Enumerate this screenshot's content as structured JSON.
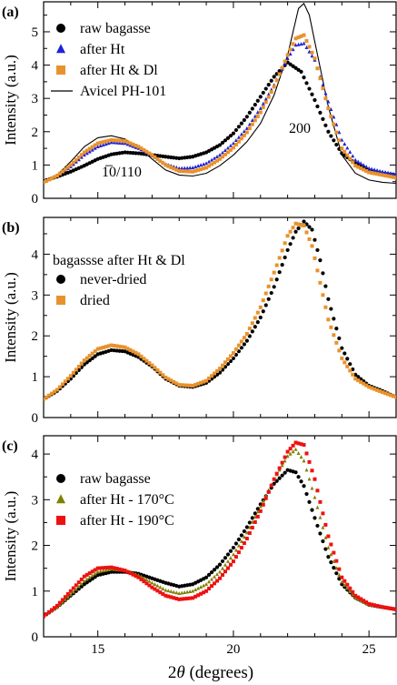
{
  "figure": {
    "xlabel_prefix": "2",
    "xlabel_theta": "θ",
    "xlabel_suffix": " (degrees)"
  },
  "chart_data": [
    {
      "type": "scatter",
      "panel_label": "(a)",
      "xlim": [
        13,
        26
      ],
      "ylim": [
        0,
        5.9
      ],
      "xticks": [
        15,
        20,
        25
      ],
      "yticks": [
        0,
        1,
        2,
        3,
        4,
        5
      ],
      "ylabel": "Intensity (a.u.)",
      "xlabel": "2θ (degrees)",
      "annotations": [
        {
          "text": "200",
          "x": 22.2,
          "y": 2.35
        },
        {
          "text": "1̅0/110",
          "x": 16.0,
          "y": 0.9
        }
      ],
      "series": [
        {
          "name": "raw bagasse",
          "marker": "circle",
          "color": "#000000",
          "x": [
            13,
            13.5,
            14,
            14.5,
            15,
            15.5,
            16,
            16.5,
            17,
            17.5,
            18,
            18.5,
            19,
            19.5,
            20,
            20.5,
            21,
            21.5,
            22,
            22.5,
            23,
            23.5,
            24,
            24.5,
            25,
            25.5,
            26
          ],
          "y": [
            0.52,
            0.65,
            0.8,
            0.98,
            1.18,
            1.32,
            1.38,
            1.35,
            1.3,
            1.25,
            1.2,
            1.25,
            1.38,
            1.6,
            1.95,
            2.45,
            3.05,
            3.65,
            4.08,
            3.8,
            2.95,
            2.0,
            1.35,
            1.05,
            0.85,
            0.75,
            0.7
          ]
        },
        {
          "name": "after Ht",
          "marker": "triangle",
          "color": "#1f22d6",
          "x": [
            13,
            13.5,
            14,
            14.5,
            15,
            15.5,
            16,
            16.5,
            17,
            17.5,
            18,
            18.5,
            19,
            19.5,
            20,
            20.5,
            21,
            21.5,
            22,
            22.3,
            22.6,
            23,
            23.5,
            24,
            24.5,
            25,
            25.5,
            26
          ],
          "y": [
            0.5,
            0.68,
            0.95,
            1.3,
            1.55,
            1.68,
            1.65,
            1.5,
            1.28,
            1.02,
            0.9,
            0.92,
            1.05,
            1.3,
            1.65,
            2.1,
            2.7,
            3.4,
            4.2,
            4.6,
            4.65,
            4.15,
            2.9,
            1.75,
            1.15,
            0.9,
            0.8,
            0.72
          ]
        },
        {
          "name": "after Ht & Dl",
          "marker": "square",
          "color": "#e8922c",
          "x": [
            13,
            13.5,
            14,
            14.5,
            15,
            15.5,
            16,
            16.5,
            17,
            17.5,
            18,
            18.5,
            19,
            19.5,
            20,
            20.5,
            21,
            21.5,
            22,
            22.3,
            22.6,
            23,
            23.5,
            24,
            24.5,
            25,
            25.5,
            26
          ],
          "y": [
            0.48,
            0.68,
            1.0,
            1.38,
            1.65,
            1.75,
            1.72,
            1.55,
            1.3,
            1.0,
            0.82,
            0.8,
            0.92,
            1.18,
            1.52,
            1.98,
            2.58,
            3.35,
            4.3,
            4.8,
            4.9,
            4.2,
            2.7,
            1.5,
            0.98,
            0.78,
            0.7,
            0.62
          ]
        }
      ],
      "lines": [
        {
          "name": "Avicel PH-101",
          "color": "#000000",
          "x": [
            13,
            13.5,
            14,
            14.5,
            15,
            15.5,
            16,
            16.5,
            17,
            17.5,
            18,
            18.5,
            19,
            19.5,
            20,
            20.5,
            21,
            21.5,
            22,
            22.2,
            22.4,
            22.6,
            22.8,
            23,
            23.5,
            24,
            24.5,
            25,
            25.5,
            26
          ],
          "y": [
            0.45,
            0.7,
            1.1,
            1.55,
            1.82,
            1.88,
            1.78,
            1.52,
            1.18,
            0.85,
            0.7,
            0.67,
            0.75,
            0.98,
            1.3,
            1.7,
            2.25,
            3.1,
            4.3,
            5.0,
            5.7,
            5.85,
            5.5,
            4.7,
            2.75,
            1.3,
            0.75,
            0.55,
            0.48,
            0.45
          ]
        }
      ]
    },
    {
      "type": "scatter",
      "panel_label": "(b)",
      "xlim": [
        13,
        26
      ],
      "ylim": [
        0,
        4.9
      ],
      "xticks": [
        15,
        20,
        25
      ],
      "yticks": [
        0,
        1,
        2,
        3,
        4
      ],
      "ylabel": "Intensity (a.u.)",
      "xlabel": "2θ (degrees)",
      "legend_title": "bagassse after Ht & Dl",
      "series": [
        {
          "name": "never-dried",
          "marker": "circle",
          "color": "#000000",
          "x": [
            13,
            13.5,
            14,
            14.5,
            15,
            15.5,
            16,
            16.5,
            17,
            17.5,
            18,
            18.5,
            19,
            19.5,
            20,
            20.5,
            21,
            21.5,
            22,
            22.3,
            22.6,
            22.9,
            23.2,
            23.5,
            24,
            24.5,
            25,
            25.5,
            26
          ],
          "y": [
            0.45,
            0.65,
            0.95,
            1.3,
            1.55,
            1.65,
            1.62,
            1.48,
            1.25,
            0.95,
            0.78,
            0.75,
            0.85,
            1.1,
            1.45,
            1.88,
            2.45,
            3.2,
            4.1,
            4.55,
            4.8,
            4.6,
            3.85,
            2.9,
            1.7,
            1.05,
            0.78,
            0.65,
            0.5
          ]
        },
        {
          "name": "dried",
          "marker": "square",
          "color": "#e8922c",
          "x": [
            13,
            13.5,
            14,
            14.5,
            15,
            15.5,
            16,
            16.5,
            17,
            17.5,
            18,
            18.5,
            19,
            19.5,
            20,
            20.5,
            21,
            21.5,
            22,
            22.3,
            22.6,
            22.9,
            23.2,
            23.5,
            24,
            24.5,
            25,
            25.5,
            26
          ],
          "y": [
            0.45,
            0.68,
            1.02,
            1.4,
            1.68,
            1.77,
            1.72,
            1.55,
            1.28,
            0.98,
            0.8,
            0.78,
            0.9,
            1.2,
            1.58,
            2.05,
            2.7,
            3.55,
            4.45,
            4.75,
            4.7,
            4.2,
            3.3,
            2.4,
            1.45,
            0.95,
            0.75,
            0.62,
            0.5
          ]
        }
      ]
    },
    {
      "type": "scatter",
      "panel_label": "(c)",
      "xlim": [
        13,
        26
      ],
      "ylim": [
        0,
        4.4
      ],
      "xticks": [
        15,
        20,
        25
      ],
      "yticks": [
        0,
        1,
        2,
        3,
        4
      ],
      "ylabel": "Intensity (a.u.)",
      "xlabel": "2θ (degrees)",
      "series": [
        {
          "name": "raw bagasse",
          "marker": "circle",
          "color": "#000000",
          "x": [
            13,
            13.5,
            14,
            14.5,
            15,
            15.5,
            16,
            16.5,
            17,
            17.5,
            18,
            18.5,
            19,
            19.5,
            20,
            20.5,
            21,
            21.5,
            22,
            22.3,
            22.6,
            23,
            23.5,
            24,
            24.5,
            25,
            25.5,
            26
          ],
          "y": [
            0.45,
            0.65,
            0.9,
            1.15,
            1.35,
            1.42,
            1.42,
            1.38,
            1.28,
            1.18,
            1.1,
            1.15,
            1.3,
            1.58,
            1.95,
            2.4,
            2.9,
            3.35,
            3.65,
            3.6,
            3.3,
            2.6,
            1.75,
            1.15,
            0.85,
            0.7,
            0.65,
            0.6
          ]
        },
        {
          "name": "after Ht - 170°C",
          "marker": "triangle",
          "color": "#808000",
          "x": [
            13,
            13.5,
            14,
            14.5,
            15,
            15.5,
            16,
            16.5,
            17,
            17.5,
            18,
            18.5,
            19,
            19.5,
            20,
            20.5,
            21,
            21.5,
            22,
            22.3,
            22.6,
            23,
            23.5,
            24,
            24.5,
            25,
            25.5,
            26
          ],
          "y": [
            0.45,
            0.65,
            0.92,
            1.22,
            1.42,
            1.48,
            1.45,
            1.35,
            1.18,
            1.02,
            0.95,
            1.0,
            1.15,
            1.42,
            1.8,
            2.28,
            2.85,
            3.45,
            3.95,
            4.1,
            3.85,
            3.05,
            1.95,
            1.2,
            0.85,
            0.7,
            0.65,
            0.6
          ]
        },
        {
          "name": "after Ht - 190°C",
          "marker": "square",
          "color": "#ee1111",
          "x": [
            13,
            13.5,
            14,
            14.5,
            15,
            15.5,
            16,
            16.5,
            17,
            17.5,
            18,
            18.5,
            19,
            19.5,
            20,
            20.5,
            21,
            21.5,
            22,
            22.3,
            22.6,
            23,
            23.5,
            24,
            24.5,
            25,
            25.5,
            26
          ],
          "y": [
            0.45,
            0.68,
            1.0,
            1.32,
            1.5,
            1.52,
            1.45,
            1.3,
            1.08,
            0.9,
            0.82,
            0.85,
            1.0,
            1.28,
            1.65,
            2.15,
            2.75,
            3.45,
            4.05,
            4.25,
            4.2,
            3.45,
            2.2,
            1.3,
            0.9,
            0.72,
            0.65,
            0.6
          ]
        }
      ]
    }
  ]
}
